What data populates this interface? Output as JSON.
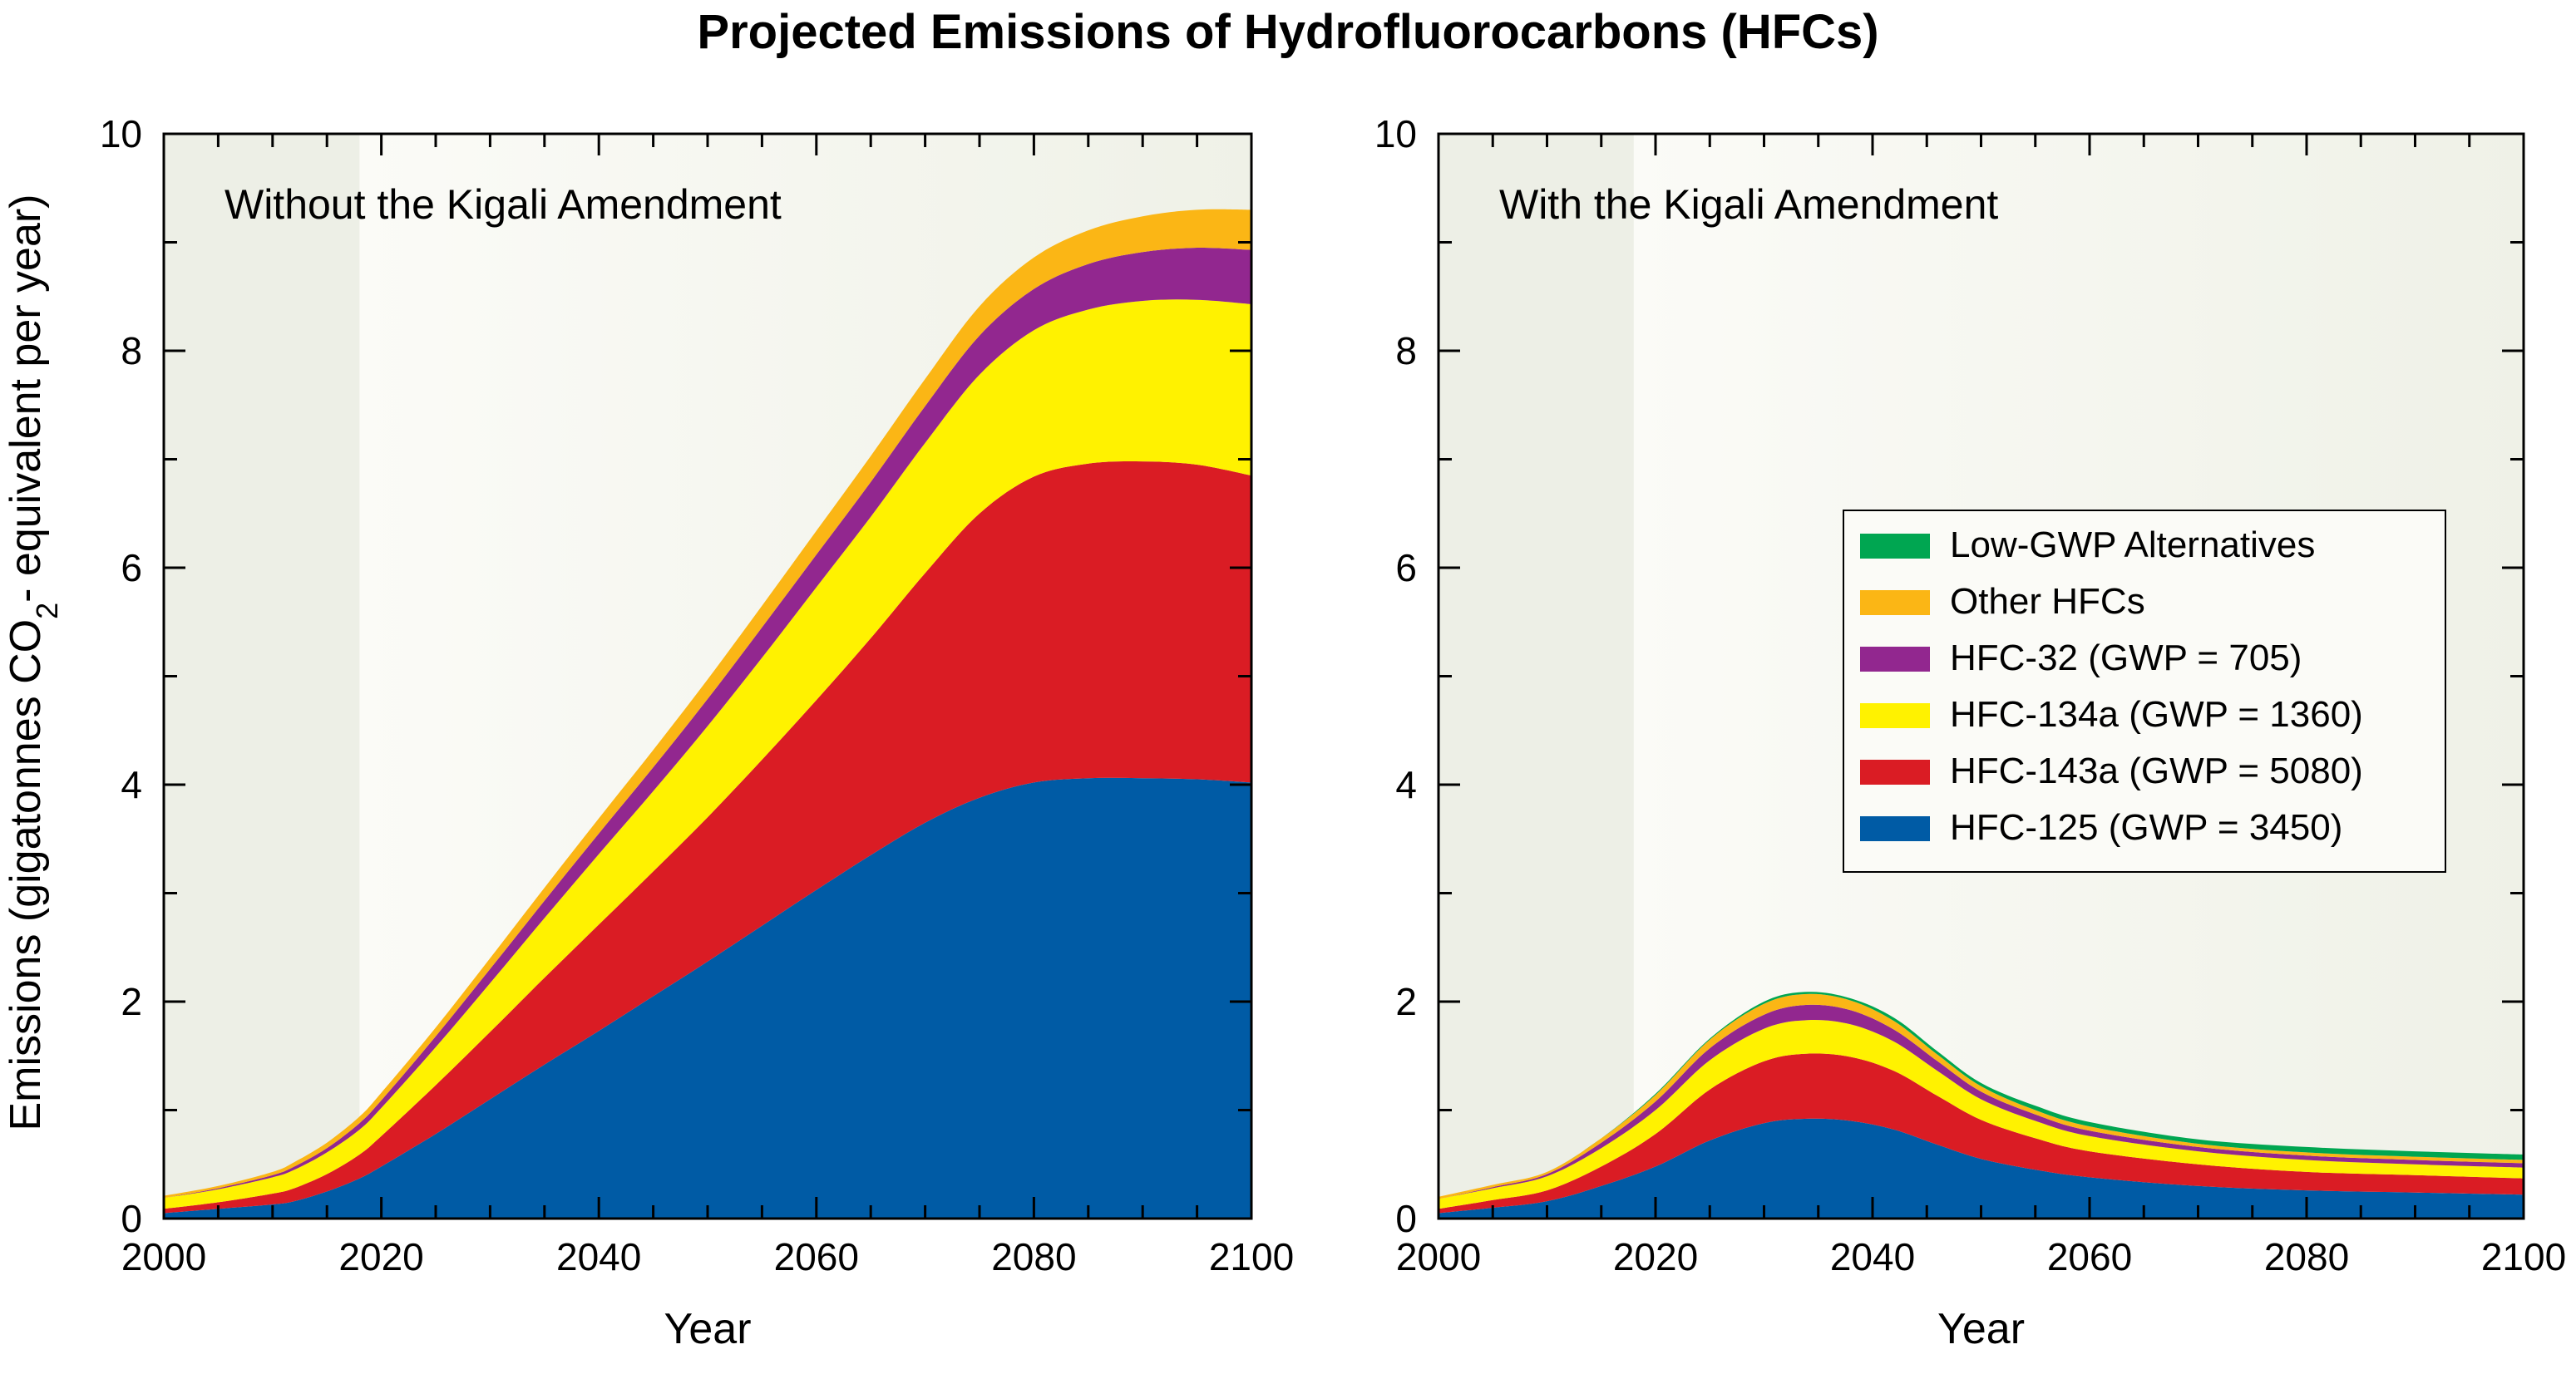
{
  "title": "Projected Emissions of Hydrofluorocarbons (HFCs)",
  "xlabel": "Year",
  "ylabel_parts": [
    "Emissions (gigatonnes CO",
    "2",
    "- equivalent per year)"
  ],
  "x_ticks": [
    "2000",
    "2020",
    "2040",
    "2060",
    "2080",
    "2100"
  ],
  "y_ticks": [
    "0",
    "2",
    "4",
    "6",
    "8",
    "10"
  ],
  "legend": [
    {
      "key": "low_gwp",
      "label": "Low-GWP Alternatives",
      "color": "#00a651"
    },
    {
      "key": "other",
      "label": "Other HFCs",
      "color": "#fbb615"
    },
    {
      "key": "hfc32",
      "label": "HFC-32 (GWP = 705)",
      "color": "#92278f"
    },
    {
      "key": "hfc134a",
      "label": "HFC-134a (GWP = 1360)",
      "color": "#fff200"
    },
    {
      "key": "hfc143a",
      "label": "HFC-143a (GWP = 5080)",
      "color": "#da1c24"
    },
    {
      "key": "hfc125",
      "label": "HFC-125 (GWP = 3450)",
      "color": "#005ba5"
    }
  ],
  "chart_data": [
    {
      "type": "area",
      "stacked": true,
      "panel_label": "Without the Kigali Amendment",
      "xlabel": "Year",
      "ylabel": "Emissions (gigatonnes CO2- equivalent per year)",
      "xlim": [
        2000,
        2100
      ],
      "ylim": [
        0,
        10
      ],
      "x": [
        2000,
        2005,
        2010,
        2012,
        2015,
        2018,
        2020,
        2025,
        2030,
        2035,
        2040,
        2045,
        2050,
        2055,
        2060,
        2065,
        2070,
        2075,
        2080,
        2085,
        2090,
        2095,
        2100
      ],
      "series": [
        {
          "name": "HFC-125 (GWP = 3450)",
          "key": "hfc125",
          "values": [
            0.05,
            0.09,
            0.13,
            0.16,
            0.25,
            0.37,
            0.48,
            0.78,
            1.1,
            1.42,
            1.73,
            2.05,
            2.37,
            2.7,
            3.03,
            3.35,
            3.65,
            3.88,
            4.02,
            4.06,
            4.06,
            4.05,
            4.02
          ]
        },
        {
          "name": "HFC-143a (GWP = 5080)",
          "key": "hfc143a",
          "values": [
            0.04,
            0.06,
            0.1,
            0.12,
            0.16,
            0.22,
            0.28,
            0.45,
            0.62,
            0.8,
            0.98,
            1.15,
            1.33,
            1.53,
            1.75,
            2.0,
            2.3,
            2.62,
            2.82,
            2.9,
            2.92,
            2.9,
            2.83
          ]
        },
        {
          "name": "HFC-134a (GWP = 1360)",
          "key": "hfc134a",
          "values": [
            0.1,
            0.12,
            0.15,
            0.17,
            0.2,
            0.23,
            0.26,
            0.35,
            0.45,
            0.55,
            0.65,
            0.74,
            0.84,
            0.94,
            1.04,
            1.12,
            1.2,
            1.28,
            1.35,
            1.42,
            1.48,
            1.52,
            1.58
          ]
        },
        {
          "name": "HFC-32 (GWP = 705)",
          "key": "hfc32",
          "values": [
            0.0,
            0.01,
            0.02,
            0.03,
            0.04,
            0.06,
            0.07,
            0.1,
            0.13,
            0.16,
            0.19,
            0.22,
            0.25,
            0.28,
            0.3,
            0.32,
            0.34,
            0.36,
            0.38,
            0.42,
            0.45,
            0.48,
            0.5
          ]
        },
        {
          "name": "Other HFCs",
          "key": "other",
          "values": [
            0.02,
            0.02,
            0.03,
            0.04,
            0.05,
            0.06,
            0.07,
            0.08,
            0.1,
            0.12,
            0.14,
            0.16,
            0.18,
            0.2,
            0.22,
            0.24,
            0.25,
            0.27,
            0.29,
            0.31,
            0.33,
            0.35,
            0.37
          ]
        }
      ]
    },
    {
      "type": "area",
      "stacked": true,
      "panel_label": "With the Kigali Amendment",
      "xlabel": "Year",
      "ylabel": "Emissions (gigatonnes CO2- equivalent per year)",
      "xlim": [
        2000,
        2100
      ],
      "ylim": [
        0,
        10
      ],
      "legend_position": "center-right",
      "x": [
        2000,
        2005,
        2010,
        2015,
        2020,
        2025,
        2030,
        2034,
        2038,
        2042,
        2046,
        2050,
        2055,
        2060,
        2070,
        2080,
        2090,
        2100
      ],
      "series": [
        {
          "name": "HFC-125 (GWP = 3450)",
          "key": "hfc125",
          "values": [
            0.05,
            0.1,
            0.16,
            0.3,
            0.48,
            0.72,
            0.88,
            0.92,
            0.9,
            0.82,
            0.68,
            0.55,
            0.45,
            0.38,
            0.3,
            0.26,
            0.24,
            0.22
          ]
        },
        {
          "name": "HFC-143a (GWP = 5080)",
          "key": "hfc143a",
          "values": [
            0.04,
            0.07,
            0.1,
            0.18,
            0.3,
            0.47,
            0.57,
            0.6,
            0.59,
            0.54,
            0.45,
            0.36,
            0.29,
            0.24,
            0.2,
            0.17,
            0.16,
            0.15
          ]
        },
        {
          "name": "HFC-134a (GWP = 1360)",
          "key": "hfc134a",
          "values": [
            0.09,
            0.11,
            0.13,
            0.17,
            0.22,
            0.27,
            0.3,
            0.31,
            0.3,
            0.27,
            0.23,
            0.19,
            0.16,
            0.14,
            0.12,
            0.11,
            0.1,
            0.1
          ]
        },
        {
          "name": "HFC-32 (GWP = 705)",
          "key": "hfc32",
          "values": [
            0.0,
            0.01,
            0.02,
            0.05,
            0.08,
            0.11,
            0.13,
            0.14,
            0.13,
            0.11,
            0.09,
            0.07,
            0.06,
            0.05,
            0.04,
            0.04,
            0.04,
            0.04
          ]
        },
        {
          "name": "Other HFCs",
          "key": "other",
          "values": [
            0.02,
            0.02,
            0.02,
            0.04,
            0.06,
            0.08,
            0.1,
            0.1,
            0.09,
            0.08,
            0.06,
            0.05,
            0.04,
            0.04,
            0.03,
            0.03,
            0.03,
            0.03
          ]
        },
        {
          "name": "Low-GWP Alternatives",
          "key": "low_gwp",
          "values": [
            0.0,
            0.0,
            0.0,
            0.0,
            0.01,
            0.01,
            0.02,
            0.02,
            0.02,
            0.03,
            0.03,
            0.03,
            0.04,
            0.04,
            0.04,
            0.05,
            0.05,
            0.05
          ]
        }
      ]
    }
  ]
}
